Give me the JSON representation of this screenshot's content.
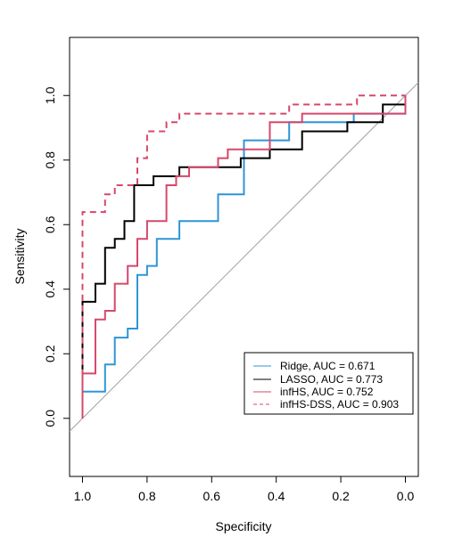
{
  "chart_data": {
    "type": "line",
    "xlabel": "Specificity",
    "ylabel": "Sensitivity",
    "xlim": [
      1.04,
      -0.04
    ],
    "ylim": [
      -0.18,
      1.18
    ],
    "x_ticks": [
      "1.0",
      "0.8",
      "0.6",
      "0.4",
      "0.2",
      "0.0"
    ],
    "y_ticks": [
      "0.0",
      "0.2",
      "0.4",
      "0.6",
      "0.8",
      "1.0"
    ],
    "grid": false,
    "legend_position": "bottom-right",
    "reference_line": {
      "from": [
        1.0,
        0.0
      ],
      "to": [
        0.0,
        1.0
      ],
      "color": "#a0a0a0"
    },
    "series": [
      {
        "name": "Ridge, AUC = 0.671",
        "color": "#2f95d6",
        "dashed": false,
        "points": [
          [
            1.0,
            0.0
          ],
          [
            1.0,
            0.083
          ],
          [
            0.93,
            0.083
          ],
          [
            0.93,
            0.167
          ],
          [
            0.9,
            0.167
          ],
          [
            0.9,
            0.25
          ],
          [
            0.86,
            0.25
          ],
          [
            0.86,
            0.278
          ],
          [
            0.83,
            0.278
          ],
          [
            0.83,
            0.444
          ],
          [
            0.8,
            0.444
          ],
          [
            0.8,
            0.472
          ],
          [
            0.77,
            0.472
          ],
          [
            0.77,
            0.556
          ],
          [
            0.7,
            0.556
          ],
          [
            0.7,
            0.611
          ],
          [
            0.58,
            0.611
          ],
          [
            0.58,
            0.694
          ],
          [
            0.5,
            0.694
          ],
          [
            0.5,
            0.861
          ],
          [
            0.36,
            0.861
          ],
          [
            0.36,
            0.917
          ],
          [
            0.16,
            0.917
          ],
          [
            0.16,
            0.944
          ],
          [
            0.0,
            0.944
          ],
          [
            0.0,
            1.0
          ]
        ]
      },
      {
        "name": "LASSO, AUC = 0.773",
        "color": "#000000",
        "dashed": false,
        "points": [
          [
            1.0,
            0.0
          ],
          [
            1.0,
            0.361
          ],
          [
            0.96,
            0.361
          ],
          [
            0.96,
            0.417
          ],
          [
            0.93,
            0.417
          ],
          [
            0.93,
            0.528
          ],
          [
            0.9,
            0.528
          ],
          [
            0.9,
            0.556
          ],
          [
            0.87,
            0.556
          ],
          [
            0.87,
            0.611
          ],
          [
            0.84,
            0.611
          ],
          [
            0.84,
            0.722
          ],
          [
            0.78,
            0.722
          ],
          [
            0.78,
            0.75
          ],
          [
            0.7,
            0.75
          ],
          [
            0.7,
            0.778
          ],
          [
            0.6,
            0.778
          ],
          [
            0.6,
            0.778
          ],
          [
            0.51,
            0.778
          ],
          [
            0.51,
            0.806
          ],
          [
            0.42,
            0.806
          ],
          [
            0.42,
            0.833
          ],
          [
            0.32,
            0.833
          ],
          [
            0.32,
            0.889
          ],
          [
            0.18,
            0.889
          ],
          [
            0.18,
            0.917
          ],
          [
            0.07,
            0.917
          ],
          [
            0.07,
            0.972
          ],
          [
            0.0,
            0.972
          ],
          [
            0.0,
            1.0
          ]
        ]
      },
      {
        "name": "infHS, AUC = 0.752",
        "color": "#d6486a",
        "dashed": false,
        "points": [
          [
            1.0,
            0.0
          ],
          [
            1.0,
            0.139
          ],
          [
            0.96,
            0.139
          ],
          [
            0.96,
            0.306
          ],
          [
            0.93,
            0.306
          ],
          [
            0.93,
            0.333
          ],
          [
            0.9,
            0.333
          ],
          [
            0.9,
            0.417
          ],
          [
            0.86,
            0.417
          ],
          [
            0.86,
            0.472
          ],
          [
            0.83,
            0.472
          ],
          [
            0.83,
            0.556
          ],
          [
            0.8,
            0.556
          ],
          [
            0.8,
            0.611
          ],
          [
            0.74,
            0.611
          ],
          [
            0.74,
            0.722
          ],
          [
            0.71,
            0.722
          ],
          [
            0.71,
            0.75
          ],
          [
            0.67,
            0.75
          ],
          [
            0.67,
            0.778
          ],
          [
            0.58,
            0.778
          ],
          [
            0.58,
            0.806
          ],
          [
            0.55,
            0.806
          ],
          [
            0.55,
            0.833
          ],
          [
            0.42,
            0.833
          ],
          [
            0.42,
            0.917
          ],
          [
            0.32,
            0.917
          ],
          [
            0.32,
            0.944
          ],
          [
            0.07,
            0.944
          ],
          [
            0.07,
            0.944
          ],
          [
            0.0,
            0.944
          ],
          [
            0.0,
            1.0
          ]
        ]
      },
      {
        "name": "infHS-DSS, AUC = 0.903",
        "color": "#d6486a",
        "dashed": true,
        "points": [
          [
            1.0,
            0.0
          ],
          [
            1.0,
            0.639
          ],
          [
            0.93,
            0.639
          ],
          [
            0.93,
            0.694
          ],
          [
            0.9,
            0.694
          ],
          [
            0.9,
            0.722
          ],
          [
            0.83,
            0.722
          ],
          [
            0.83,
            0.806
          ],
          [
            0.8,
            0.806
          ],
          [
            0.8,
            0.889
          ],
          [
            0.74,
            0.889
          ],
          [
            0.74,
            0.917
          ],
          [
            0.7,
            0.917
          ],
          [
            0.7,
            0.944
          ],
          [
            0.36,
            0.944
          ],
          [
            0.36,
            0.972
          ],
          [
            0.15,
            0.972
          ],
          [
            0.15,
            1.0
          ],
          [
            0.0,
            1.0
          ]
        ]
      }
    ]
  }
}
